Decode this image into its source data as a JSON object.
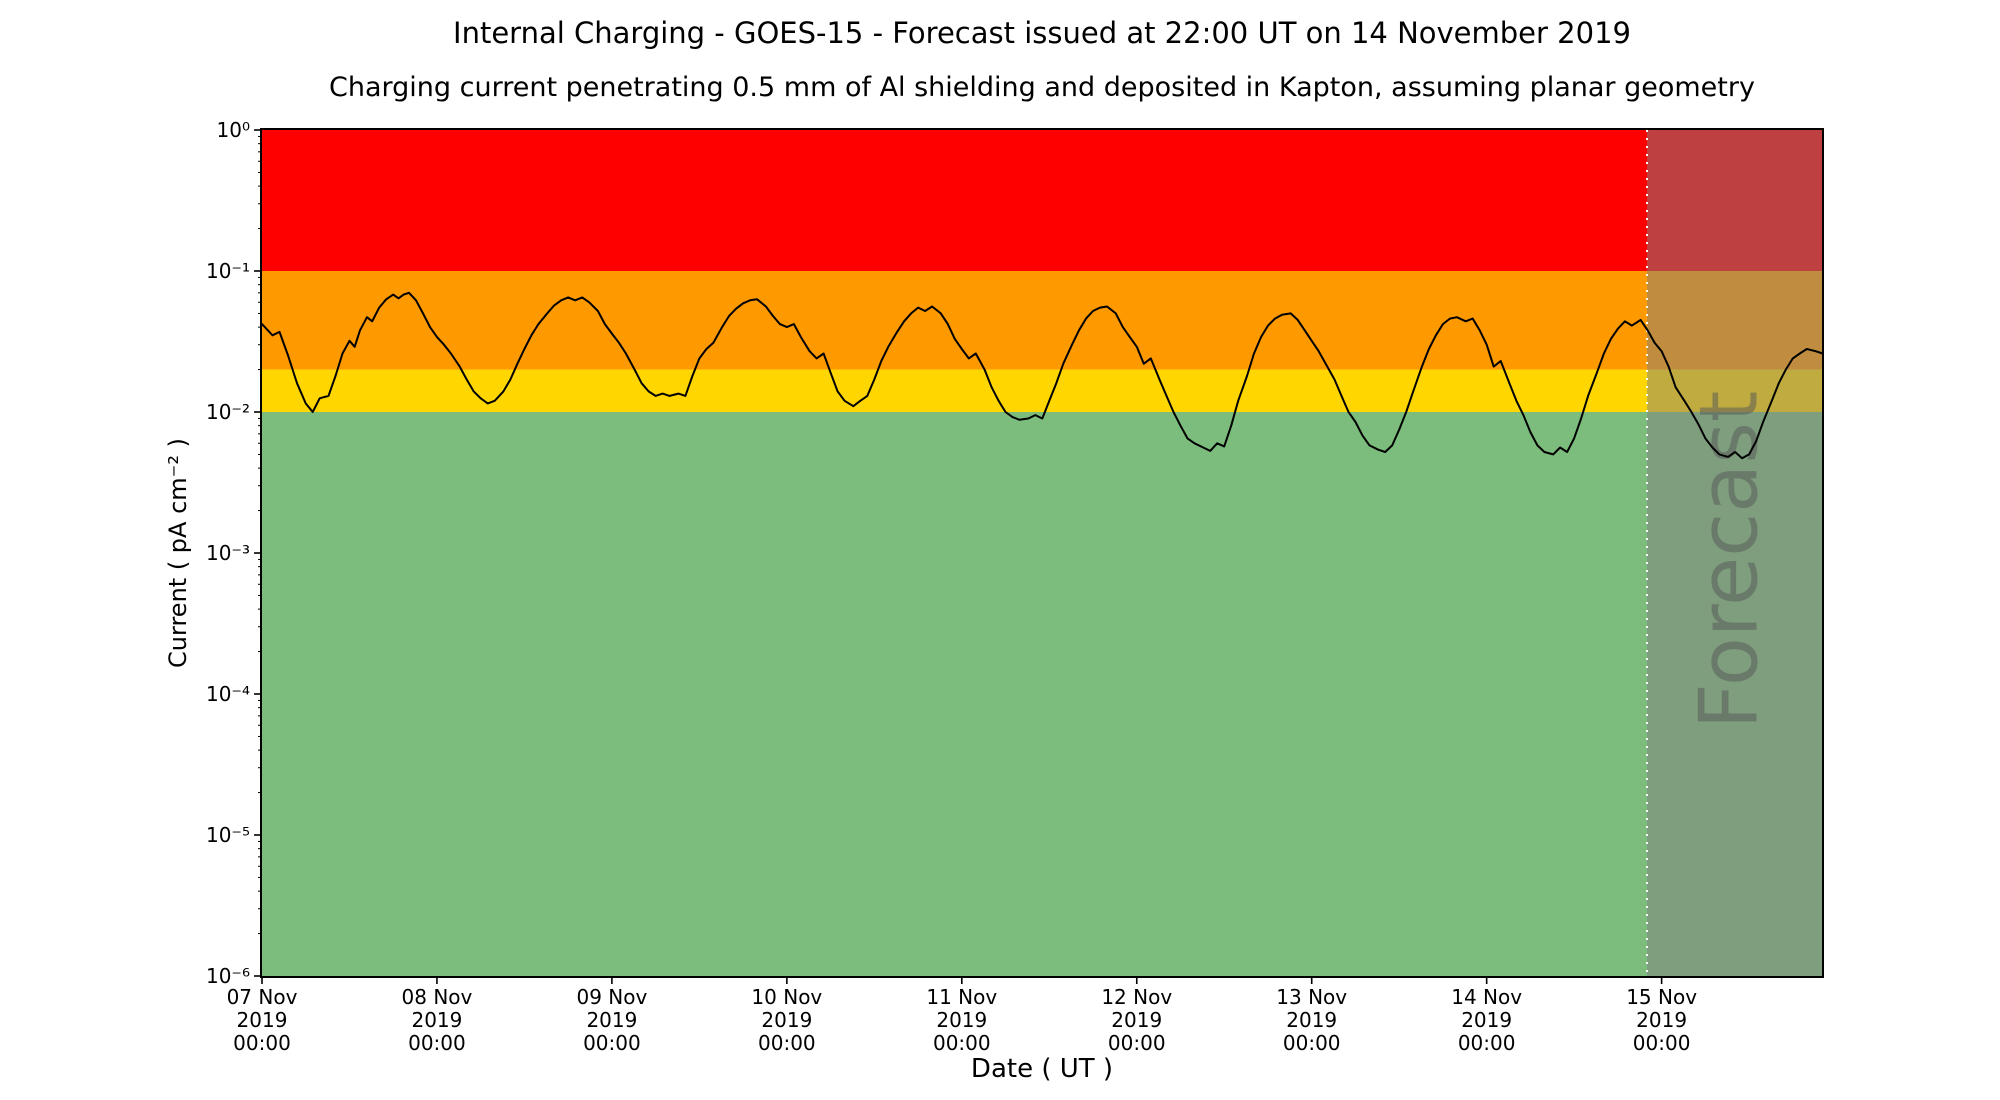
{
  "chart_data": {
    "type": "line",
    "title": "Internal Charging - GOES-15 - Forecast issued at 22:00 UT on 14 November 2019",
    "subtitle": "Charging current penetrating 0.5 mm of Al shielding and deposited in Kapton, assuming planar geometry",
    "xlabel": "Date ( UT )",
    "ylabel": "Current ( pA cm⁻² )",
    "y_scale": "log",
    "ylim": [
      1e-06,
      1
    ],
    "x_range_days": 8.9167,
    "grid": false,
    "legend": "none",
    "y_ticks": [
      {
        "value": 1,
        "label": "10⁰"
      },
      {
        "value": 0.1,
        "label": "10⁻¹"
      },
      {
        "value": 0.01,
        "label": "10⁻²"
      },
      {
        "value": 0.001,
        "label": "10⁻³"
      },
      {
        "value": 0.0001,
        "label": "10⁻⁴"
      },
      {
        "value": 1e-05,
        "label": "10⁻⁵"
      },
      {
        "value": 1e-06,
        "label": "10⁻⁶"
      }
    ],
    "x_ticks": [
      {
        "day": 0,
        "lines": [
          "07 Nov",
          "2019",
          "00:00"
        ]
      },
      {
        "day": 1,
        "lines": [
          "08 Nov",
          "2019",
          "00:00"
        ]
      },
      {
        "day": 2,
        "lines": [
          "09 Nov",
          "2019",
          "00:00"
        ]
      },
      {
        "day": 3,
        "lines": [
          "10 Nov",
          "2019",
          "00:00"
        ]
      },
      {
        "day": 4,
        "lines": [
          "11 Nov",
          "2019",
          "00:00"
        ]
      },
      {
        "day": 5,
        "lines": [
          "12 Nov",
          "2019",
          "00:00"
        ]
      },
      {
        "day": 6,
        "lines": [
          "13 Nov",
          "2019",
          "00:00"
        ]
      },
      {
        "day": 7,
        "lines": [
          "14 Nov",
          "2019",
          "00:00"
        ]
      },
      {
        "day": 8,
        "lines": [
          "15 Nov",
          "2019",
          "00:00"
        ]
      }
    ],
    "bands": [
      {
        "name": "red-alert",
        "from": 0.1,
        "to": 1,
        "color": "#ff0000"
      },
      {
        "name": "orange-warning",
        "from": 0.02,
        "to": 0.1,
        "color": "#ff9900"
      },
      {
        "name": "yellow-caution",
        "from": 0.01,
        "to": 0.02,
        "color": "#ffd600"
      },
      {
        "name": "green-quiet",
        "from": 1e-06,
        "to": 0.01,
        "color": "#7cbc7c"
      }
    ],
    "forecast": {
      "start_day": 7.9167,
      "label": "Forecast",
      "overlay_color": "#808080",
      "overlay_opacity": 0.5,
      "divider_color": "#ffffff",
      "divider_style": "dotted",
      "label_color": "#555555",
      "label_opacity": 0.5
    },
    "series": [
      {
        "name": "charging-current",
        "color": "#000000",
        "points": [
          [
            0.0,
            0.042
          ],
          [
            0.06,
            0.035
          ],
          [
            0.1,
            0.037
          ],
          [
            0.15,
            0.025
          ],
          [
            0.2,
            0.016
          ],
          [
            0.25,
            0.0115
          ],
          [
            0.29,
            0.01
          ],
          [
            0.33,
            0.0125
          ],
          [
            0.38,
            0.013
          ],
          [
            0.42,
            0.018
          ],
          [
            0.46,
            0.026
          ],
          [
            0.5,
            0.032
          ],
          [
            0.53,
            0.029
          ],
          [
            0.56,
            0.038
          ],
          [
            0.6,
            0.047
          ],
          [
            0.63,
            0.044
          ],
          [
            0.67,
            0.055
          ],
          [
            0.71,
            0.063
          ],
          [
            0.75,
            0.068
          ],
          [
            0.78,
            0.064
          ],
          [
            0.81,
            0.068
          ],
          [
            0.84,
            0.07
          ],
          [
            0.88,
            0.062
          ],
          [
            0.92,
            0.05
          ],
          [
            0.96,
            0.04
          ],
          [
            1.0,
            0.034
          ],
          [
            1.04,
            0.03
          ],
          [
            1.08,
            0.026
          ],
          [
            1.13,
            0.021
          ],
          [
            1.17,
            0.017
          ],
          [
            1.21,
            0.014
          ],
          [
            1.25,
            0.0125
          ],
          [
            1.29,
            0.0115
          ],
          [
            1.33,
            0.012
          ],
          [
            1.38,
            0.014
          ],
          [
            1.42,
            0.017
          ],
          [
            1.46,
            0.022
          ],
          [
            1.5,
            0.028
          ],
          [
            1.54,
            0.035
          ],
          [
            1.58,
            0.042
          ],
          [
            1.63,
            0.05
          ],
          [
            1.67,
            0.057
          ],
          [
            1.71,
            0.062
          ],
          [
            1.75,
            0.065
          ],
          [
            1.79,
            0.062
          ],
          [
            1.83,
            0.065
          ],
          [
            1.87,
            0.06
          ],
          [
            1.92,
            0.052
          ],
          [
            1.96,
            0.042
          ],
          [
            2.0,
            0.036
          ],
          [
            2.04,
            0.031
          ],
          [
            2.08,
            0.026
          ],
          [
            2.13,
            0.02
          ],
          [
            2.17,
            0.016
          ],
          [
            2.21,
            0.014
          ],
          [
            2.25,
            0.013
          ],
          [
            2.29,
            0.0135
          ],
          [
            2.33,
            0.013
          ],
          [
            2.38,
            0.0135
          ],
          [
            2.42,
            0.013
          ],
          [
            2.46,
            0.018
          ],
          [
            2.5,
            0.024
          ],
          [
            2.54,
            0.028
          ],
          [
            2.58,
            0.031
          ],
          [
            2.63,
            0.04
          ],
          [
            2.67,
            0.048
          ],
          [
            2.71,
            0.054
          ],
          [
            2.75,
            0.059
          ],
          [
            2.79,
            0.062
          ],
          [
            2.83,
            0.063
          ],
          [
            2.88,
            0.056
          ],
          [
            2.92,
            0.048
          ],
          [
            2.96,
            0.042
          ],
          [
            3.0,
            0.04
          ],
          [
            3.04,
            0.042
          ],
          [
            3.08,
            0.034
          ],
          [
            3.13,
            0.027
          ],
          [
            3.17,
            0.024
          ],
          [
            3.21,
            0.026
          ],
          [
            3.25,
            0.019
          ],
          [
            3.29,
            0.014
          ],
          [
            3.33,
            0.012
          ],
          [
            3.38,
            0.011
          ],
          [
            3.42,
            0.012
          ],
          [
            3.46,
            0.013
          ],
          [
            3.5,
            0.017
          ],
          [
            3.54,
            0.023
          ],
          [
            3.58,
            0.029
          ],
          [
            3.63,
            0.037
          ],
          [
            3.67,
            0.044
          ],
          [
            3.71,
            0.05
          ],
          [
            3.75,
            0.055
          ],
          [
            3.79,
            0.052
          ],
          [
            3.83,
            0.056
          ],
          [
            3.88,
            0.05
          ],
          [
            3.92,
            0.042
          ],
          [
            3.96,
            0.033
          ],
          [
            4.0,
            0.028
          ],
          [
            4.04,
            0.024
          ],
          [
            4.08,
            0.026
          ],
          [
            4.13,
            0.02
          ],
          [
            4.17,
            0.015
          ],
          [
            4.21,
            0.012
          ],
          [
            4.25,
            0.01
          ],
          [
            4.29,
            0.0092
          ],
          [
            4.33,
            0.0088
          ],
          [
            4.38,
            0.009
          ],
          [
            4.42,
            0.0095
          ],
          [
            4.46,
            0.009
          ],
          [
            4.5,
            0.012
          ],
          [
            4.54,
            0.016
          ],
          [
            4.58,
            0.022
          ],
          [
            4.63,
            0.03
          ],
          [
            4.67,
            0.038
          ],
          [
            4.71,
            0.046
          ],
          [
            4.75,
            0.052
          ],
          [
            4.79,
            0.055
          ],
          [
            4.83,
            0.056
          ],
          [
            4.88,
            0.05
          ],
          [
            4.92,
            0.04
          ],
          [
            4.96,
            0.034
          ],
          [
            5.0,
            0.029
          ],
          [
            5.04,
            0.022
          ],
          [
            5.08,
            0.024
          ],
          [
            5.13,
            0.017
          ],
          [
            5.17,
            0.013
          ],
          [
            5.21,
            0.01
          ],
          [
            5.25,
            0.008
          ],
          [
            5.29,
            0.0065
          ],
          [
            5.33,
            0.006
          ],
          [
            5.38,
            0.0056
          ],
          [
            5.42,
            0.0053
          ],
          [
            5.46,
            0.006
          ],
          [
            5.5,
            0.0057
          ],
          [
            5.54,
            0.008
          ],
          [
            5.58,
            0.012
          ],
          [
            5.63,
            0.018
          ],
          [
            5.67,
            0.026
          ],
          [
            5.71,
            0.034
          ],
          [
            5.75,
            0.041
          ],
          [
            5.79,
            0.046
          ],
          [
            5.83,
            0.049
          ],
          [
            5.88,
            0.05
          ],
          [
            5.92,
            0.045
          ],
          [
            5.96,
            0.038
          ],
          [
            6.0,
            0.032
          ],
          [
            6.04,
            0.027
          ],
          [
            6.08,
            0.022
          ],
          [
            6.13,
            0.017
          ],
          [
            6.17,
            0.013
          ],
          [
            6.21,
            0.01
          ],
          [
            6.25,
            0.0085
          ],
          [
            6.29,
            0.0068
          ],
          [
            6.33,
            0.0058
          ],
          [
            6.38,
            0.0054
          ],
          [
            6.42,
            0.0052
          ],
          [
            6.46,
            0.0058
          ],
          [
            6.5,
            0.0075
          ],
          [
            6.54,
            0.01
          ],
          [
            6.58,
            0.014
          ],
          [
            6.63,
            0.021
          ],
          [
            6.67,
            0.028
          ],
          [
            6.71,
            0.035
          ],
          [
            6.75,
            0.042
          ],
          [
            6.79,
            0.046
          ],
          [
            6.83,
            0.047
          ],
          [
            6.88,
            0.044
          ],
          [
            6.92,
            0.046
          ],
          [
            6.96,
            0.038
          ],
          [
            7.0,
            0.03
          ],
          [
            7.04,
            0.021
          ],
          [
            7.08,
            0.023
          ],
          [
            7.13,
            0.016
          ],
          [
            7.17,
            0.012
          ],
          [
            7.21,
            0.0095
          ],
          [
            7.25,
            0.0072
          ],
          [
            7.29,
            0.0058
          ],
          [
            7.33,
            0.0052
          ],
          [
            7.38,
            0.005
          ],
          [
            7.42,
            0.0056
          ],
          [
            7.46,
            0.0052
          ],
          [
            7.5,
            0.0065
          ],
          [
            7.54,
            0.009
          ],
          [
            7.58,
            0.013
          ],
          [
            7.63,
            0.019
          ],
          [
            7.67,
            0.026
          ],
          [
            7.71,
            0.033
          ],
          [
            7.75,
            0.039
          ],
          [
            7.79,
            0.044
          ],
          [
            7.83,
            0.041
          ],
          [
            7.88,
            0.045
          ],
          [
            7.92,
            0.038
          ],
          [
            7.96,
            0.031
          ],
          [
            8.0,
            0.027
          ],
          [
            8.04,
            0.021
          ],
          [
            8.08,
            0.015
          ],
          [
            8.13,
            0.012
          ],
          [
            8.17,
            0.01
          ],
          [
            8.21,
            0.0082
          ],
          [
            8.25,
            0.0065
          ],
          [
            8.29,
            0.0056
          ],
          [
            8.33,
            0.005
          ],
          [
            8.38,
            0.0048
          ],
          [
            8.42,
            0.0052
          ],
          [
            8.46,
            0.0047
          ],
          [
            8.5,
            0.005
          ],
          [
            8.54,
            0.0062
          ],
          [
            8.58,
            0.0085
          ],
          [
            8.63,
            0.012
          ],
          [
            8.67,
            0.016
          ],
          [
            8.71,
            0.02
          ],
          [
            8.75,
            0.024
          ],
          [
            8.79,
            0.026
          ],
          [
            8.83,
            0.028
          ],
          [
            8.88,
            0.027
          ],
          [
            8.92,
            0.026
          ]
        ]
      }
    ]
  }
}
